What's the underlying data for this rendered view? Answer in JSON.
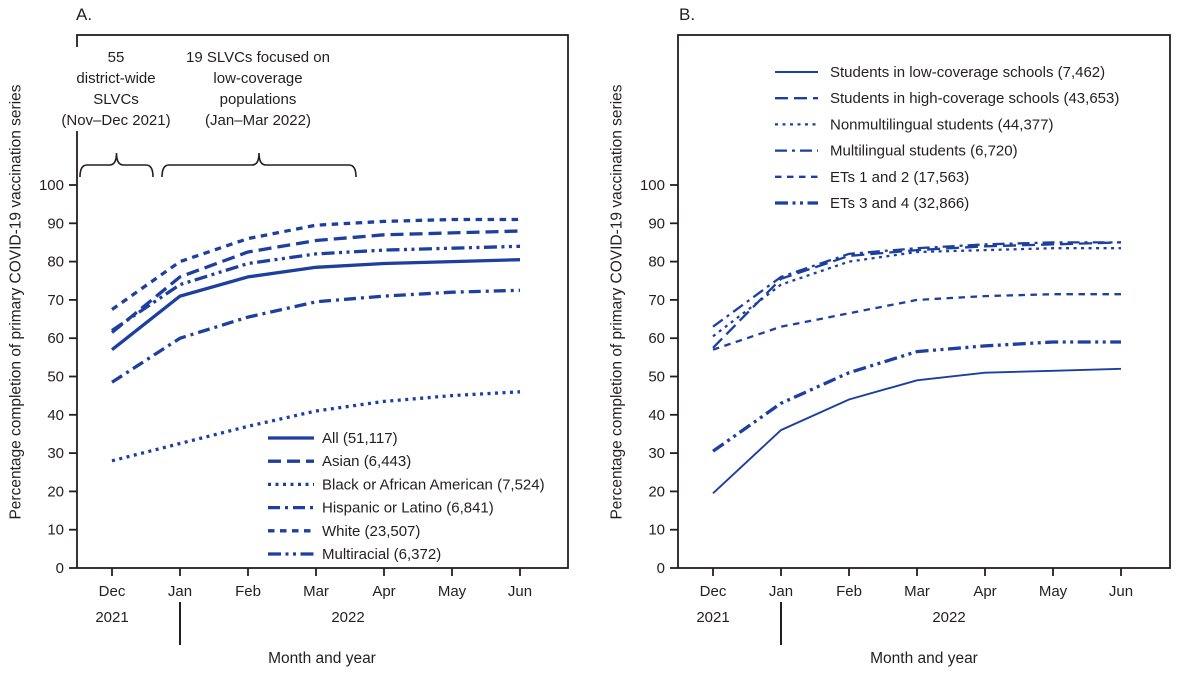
{
  "figure": {
    "y_axis_title": "Percentage completion of primary COVID-19 vaccination series",
    "x_axis_title": "Month and year",
    "line_color": "#1c3fa0",
    "text_color": "#231f20"
  },
  "panels": [
    {
      "label": "A.",
      "years": [
        "2021",
        "2022"
      ],
      "annotations": [
        {
          "lines": [
            "55",
            "district-wide",
            "SLVCs",
            "(Nov–Dec 2021)"
          ]
        },
        {
          "lines": [
            "19 SLVCs focused on",
            "low-coverage",
            "populations",
            "(Jan–Mar 2022)"
          ]
        }
      ]
    },
    {
      "label": "B.",
      "years": [
        "2021",
        "2022"
      ]
    }
  ],
  "chart_data": [
    {
      "type": "line",
      "panel": "A",
      "categories": [
        "Dec",
        "Jan",
        "Feb",
        "Mar",
        "Apr",
        "May",
        "Jun"
      ],
      "xlabel": "Month and year",
      "ylabel": "Percentage completion of primary COVID-19 vaccination series",
      "ylim": [
        0,
        100
      ],
      "ytick_step": 10,
      "grid": false,
      "legend_position": "inside-bottom-right",
      "series": [
        {
          "label": "All (51,117)",
          "line_style": "solid",
          "weight": "bold",
          "values": [
            57,
            71,
            76,
            78.5,
            79.5,
            80,
            80.5
          ]
        },
        {
          "label": "Asian (6,443)",
          "line_style": "long-dash",
          "weight": "bold",
          "values": [
            61.5,
            76,
            82.5,
            85.5,
            87,
            87.5,
            88
          ]
        },
        {
          "label": "Black or African American (7,524)",
          "line_style": "dotted",
          "weight": "bold",
          "values": [
            28,
            32.5,
            37,
            41,
            43.5,
            45,
            46
          ]
        },
        {
          "label": "Hispanic or Latino (6,841)",
          "line_style": "dash-dot",
          "weight": "bold",
          "values": [
            48.5,
            60,
            65.5,
            69.5,
            71,
            72,
            72.5
          ]
        },
        {
          "label": "White (23,507)",
          "line_style": "medium-dash",
          "weight": "bold",
          "values": [
            67.5,
            80,
            86,
            89.5,
            90.5,
            91,
            91
          ]
        },
        {
          "label": "Multiracial (6,372)",
          "line_style": "dash-dot-dot",
          "weight": "bold",
          "values": [
            62,
            74,
            79.5,
            82,
            83,
            83.5,
            84
          ]
        }
      ]
    },
    {
      "type": "line",
      "panel": "B",
      "categories": [
        "Dec",
        "Jan",
        "Feb",
        "Mar",
        "Apr",
        "May",
        "Jun"
      ],
      "xlabel": "Month and year",
      "ylabel": "Percentage completion of primary COVID-19 vaccination series",
      "ylim": [
        0,
        100
      ],
      "ytick_step": 10,
      "grid": false,
      "legend_position": "inside-top",
      "series": [
        {
          "label": "Students in low-coverage schools (7,462)",
          "line_style": "solid",
          "weight": "light",
          "values": [
            19.5,
            36,
            44,
            49,
            51,
            51.5,
            52
          ]
        },
        {
          "label": "Students in high-coverage schools (43,653)",
          "line_style": "long-dash",
          "weight": "regular",
          "values": [
            57.5,
            75.5,
            81.5,
            83,
            84,
            84.5,
            85
          ]
        },
        {
          "label": "Nonmultilingual students (44,377)",
          "line_style": "dotted",
          "weight": "regular",
          "values": [
            60.5,
            74,
            80,
            82.5,
            83,
            83.5,
            83.5
          ]
        },
        {
          "label": "Multilingual students (6,720)",
          "line_style": "dash-dot",
          "weight": "regular",
          "values": [
            63,
            76,
            82,
            83.5,
            84.5,
            85,
            85
          ]
        },
        {
          "label": "ETs 1 and 2 (17,563)",
          "line_style": "medium-dash",
          "weight": "regular",
          "values": [
            57,
            63,
            66.5,
            70,
            71,
            71.5,
            71.5
          ]
        },
        {
          "label": "ETs 3 and 4 (32,866)",
          "line_style": "dash-dot-dot",
          "weight": "bold",
          "values": [
            30.5,
            43,
            51,
            56.5,
            58,
            59,
            59
          ]
        }
      ]
    }
  ]
}
